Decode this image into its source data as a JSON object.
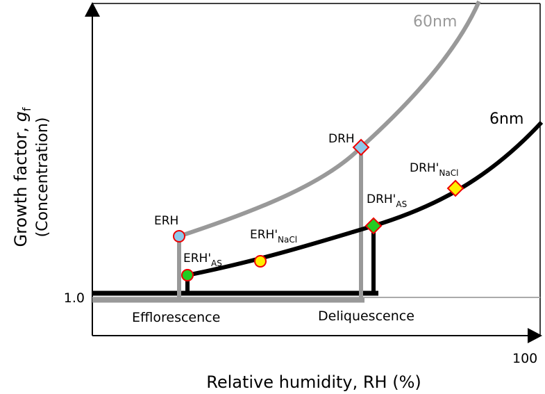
{
  "curves": {
    "large": "60nm",
    "small": "6nm"
  },
  "points": {
    "drh": {
      "main": "DRH"
    },
    "erh": {
      "main": "ERH"
    },
    "erh_as": {
      "main": "ERH'",
      "sub": "AS"
    },
    "erh_nacl": {
      "main": "ERH'",
      "sub": "NaCl"
    },
    "drh_as": {
      "main": "DRH'",
      "sub": "AS"
    },
    "drh_nacl": {
      "main": "DRH'",
      "sub": "NaCl"
    }
  },
  "axes": {
    "y_tick": "1.0",
    "x_tick": "100",
    "x_label": "Relative humidity, RH (%)",
    "y_label": {
      "main": "Growth factor, ",
      "symbol": "g",
      "sub": "f",
      "second": "(Concentration)"
    }
  },
  "regions": {
    "left": "Efflorescence",
    "right": "Deliquescence"
  }
}
